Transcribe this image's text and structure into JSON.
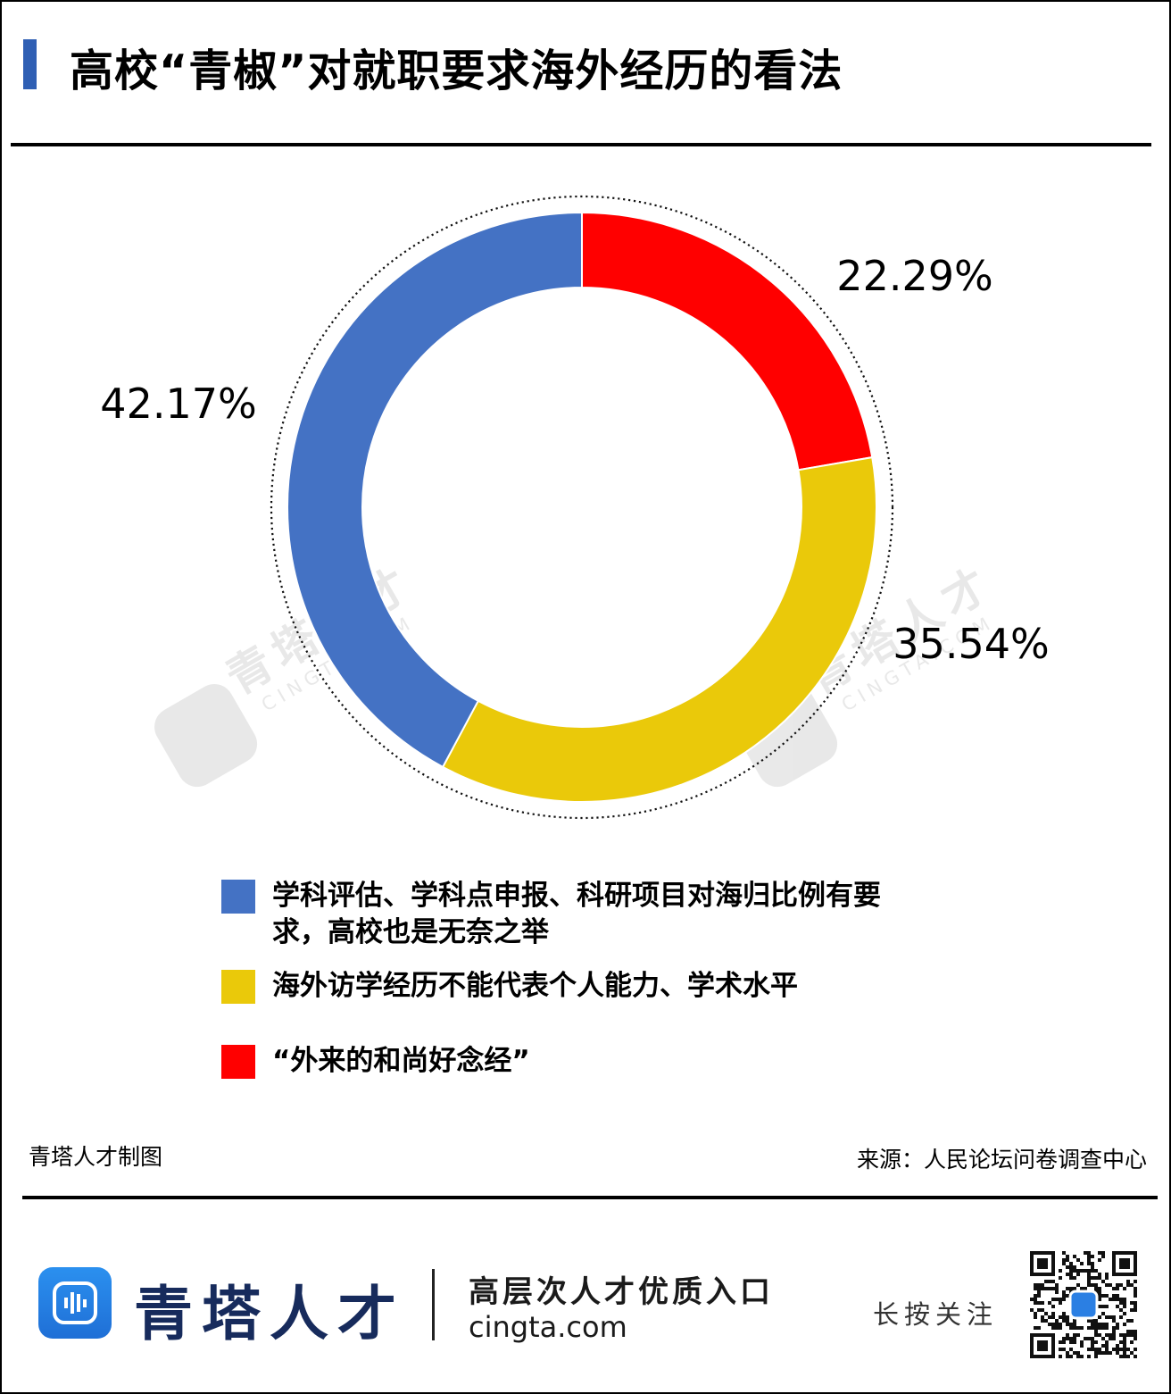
{
  "title": "高校“青椒”对就职要求海外经历的看法",
  "chart_data": {
    "type": "pie",
    "style": "donut",
    "slices": [
      {
        "label": "“外来的和尚好念经”",
        "value": 22.29,
        "value_label": "22.29%",
        "color": "#ff0000"
      },
      {
        "label": "海外访学经历不能代表个人能力、学术水平",
        "value": 35.54,
        "value_label": "35.54%",
        "color": "#eac90a"
      },
      {
        "label": "学科评估、学科点申报、科研项目对海归比例有要求，高校也是无奈之举",
        "value": 42.17,
        "value_label": "42.17%",
        "color": "#4472c4"
      }
    ],
    "legend_order": [
      2,
      1,
      0
    ],
    "legend": "bottom"
  },
  "credit": "青塔人才制图",
  "source": "来源：人民论坛问卷调查中心",
  "footer": {
    "brand": "青塔人才",
    "slogan": "高层次人才优质入口",
    "url": "cingta.com",
    "follow": "长按关注"
  },
  "watermark": {
    "brand": "青塔人才",
    "url": "CINGTA.COM"
  },
  "icons": {
    "logo": "cingta-logo-icon",
    "qr": "qr-code-icon"
  }
}
